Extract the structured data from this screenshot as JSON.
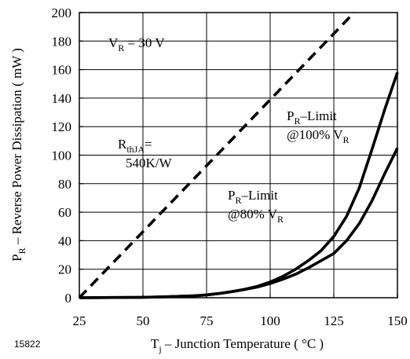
{
  "figure_id": "15822",
  "chart_data": {
    "type": "line",
    "xlabel": {
      "main": "T",
      "sub": "j",
      "rest": " – Junction Temperature ( °C )"
    },
    "ylabel": {
      "main": "P",
      "sub": "R",
      "rest": " – Reverse Power Dissipation ( mW )"
    },
    "xlim": [
      25,
      150
    ],
    "ylim": [
      0,
      200
    ],
    "xticks": [
      25,
      50,
      75,
      100,
      125,
      150
    ],
    "yticks": [
      0,
      20,
      40,
      60,
      80,
      100,
      120,
      140,
      160,
      180,
      200
    ],
    "grid": true,
    "series": [
      {
        "name_parts": {
          "line1_main": "R",
          "line1_sub": "thJA",
          "line1_rest": "=",
          "line2": "540K/W"
        },
        "style": "dashed",
        "x": [
          25,
          133
        ],
        "y": [
          0,
          200
        ]
      },
      {
        "name_parts": {
          "line1_main": "P",
          "line1_sub": "R",
          "line1_rest": "–Limit",
          "line2_main": "@100% V",
          "line2_sub": "R"
        },
        "style": "solid",
        "x": [
          25,
          50,
          60,
          70,
          75,
          80,
          85,
          90,
          95,
          100,
          105,
          110,
          115,
          120,
          125,
          130,
          135,
          140,
          145,
          150
        ],
        "y": [
          0,
          0.3,
          0.7,
          1.3,
          2,
          3,
          4.3,
          5.9,
          8,
          11,
          15,
          20,
          26,
          33,
          43,
          57,
          77,
          104,
          132,
          158
        ]
      },
      {
        "name_parts": {
          "line1_main": "P",
          "line1_sub": "R",
          "line1_rest": "–Limit",
          "line2_main": "@80% V",
          "line2_sub": "R"
        },
        "style": "solid",
        "x": [
          25,
          50,
          60,
          70,
          75,
          80,
          85,
          90,
          95,
          100,
          105,
          110,
          115,
          120,
          125,
          130,
          135,
          140,
          145,
          150
        ],
        "y": [
          0,
          0.3,
          0.7,
          1.3,
          2,
          3,
          4.3,
          5.8,
          7.5,
          10,
          13,
          16.5,
          21,
          26,
          31,
          40,
          52,
          68,
          87,
          105
        ]
      }
    ],
    "annotations": {
      "condition": {
        "main": "V",
        "sub": "R",
        "rest": " = 30 V"
      }
    }
  }
}
